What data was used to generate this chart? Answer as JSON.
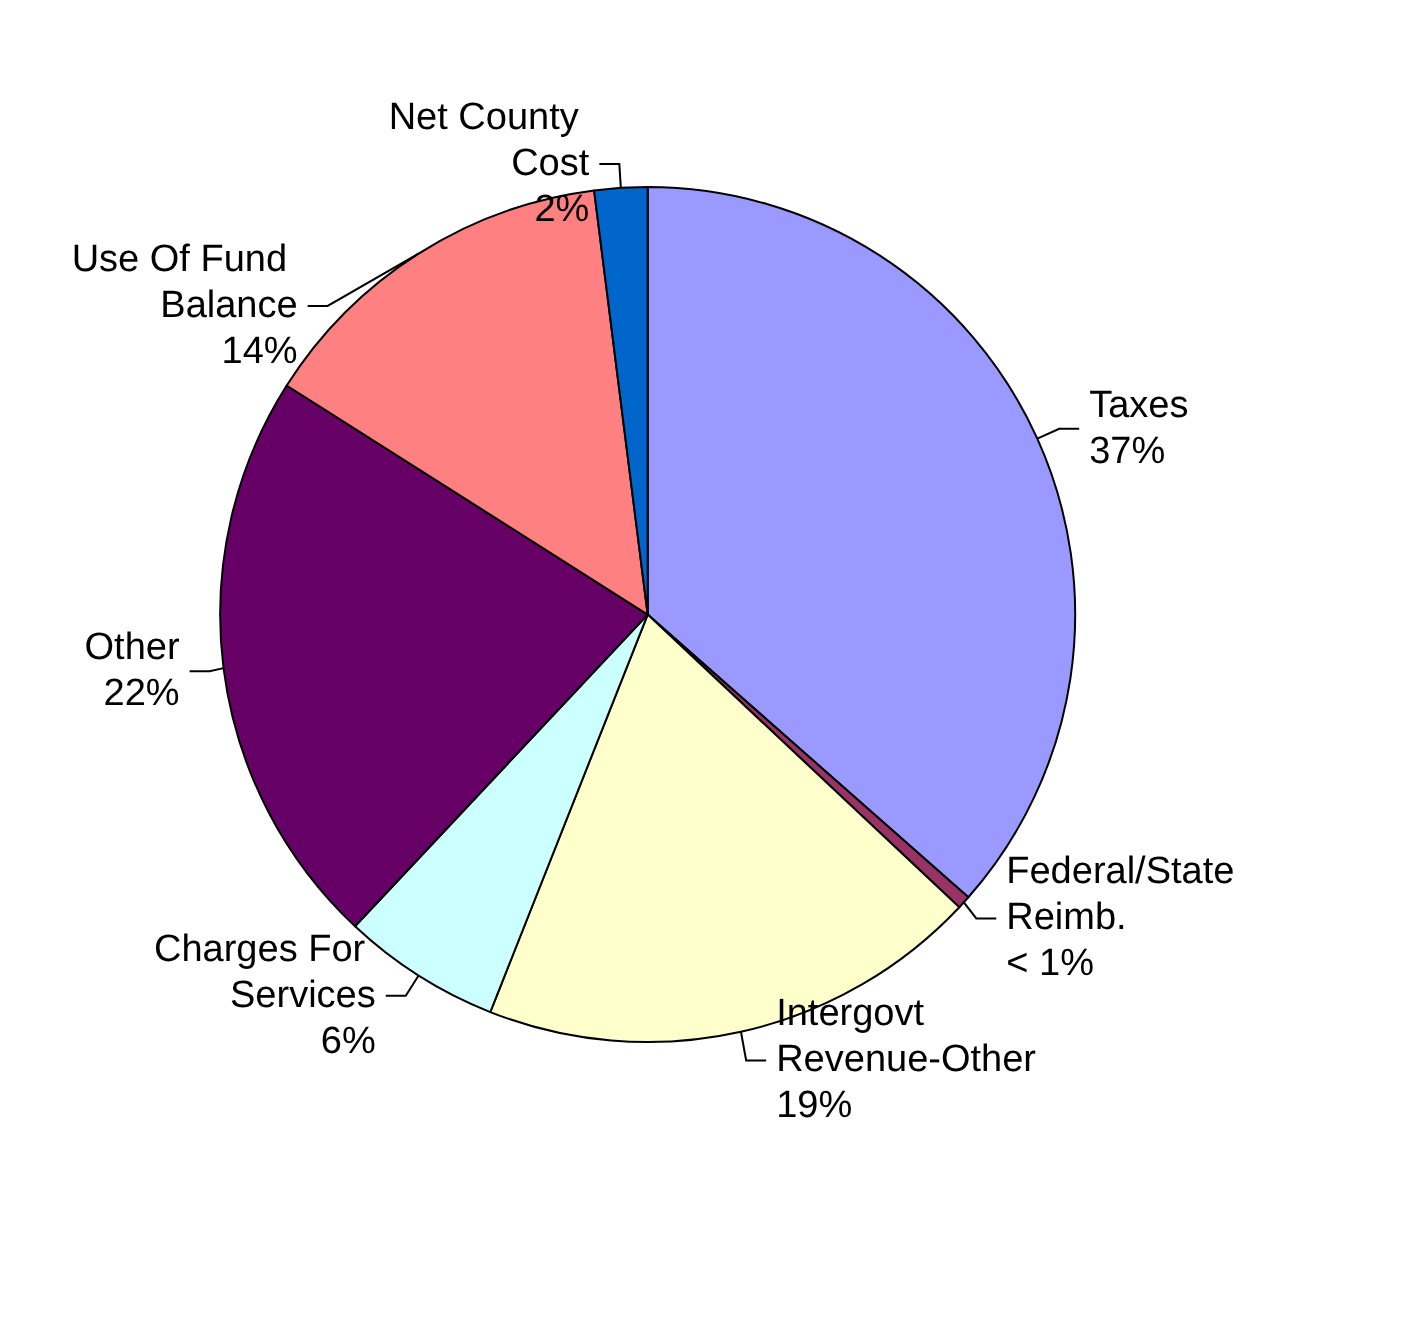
{
  "chart_data": {
    "type": "pie",
    "categories": [
      "Taxes",
      "Federal/State Reimb.",
      "Intergovt Revenue-Other",
      "Charges For Services",
      "Other",
      "Use Of Fund Balance",
      "Net County Cost"
    ],
    "values": [
      36.5,
      0.5,
      19,
      6,
      22,
      14,
      2
    ],
    "value_labels": [
      "37%",
      "< 1%",
      "19%",
      "6%",
      "22%",
      "14%",
      "2%"
    ],
    "colors": [
      "#9999ff",
      "#993366",
      "#ffffcc",
      "#ccffff",
      "#660066",
      "#ff8080",
      "#0066cc"
    ]
  }
}
